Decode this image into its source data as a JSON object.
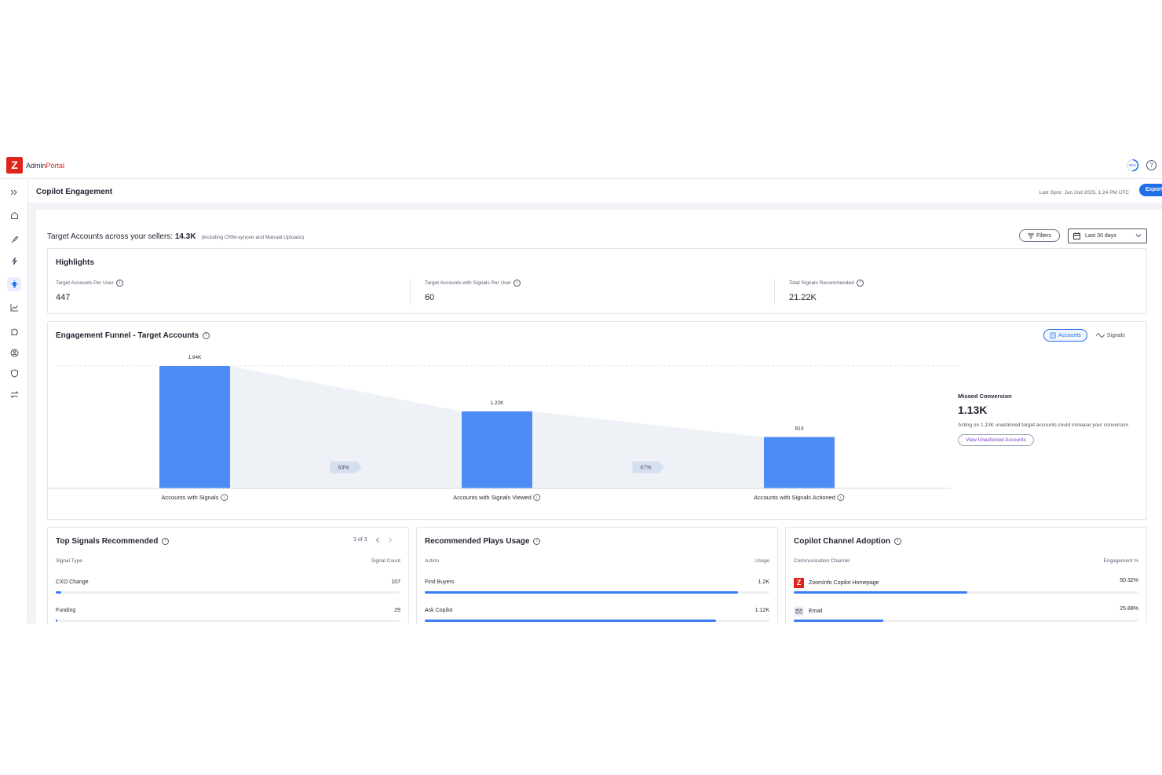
{
  "brand": {
    "logo_letter": "Z",
    "name_part1": "Admin",
    "name_part2": "Portal"
  },
  "topbar": {
    "progress_label": "50%",
    "progress_value": 0.5,
    "help_symbol": "?"
  },
  "sidebar": {
    "icons": [
      "chevrons-right-icon",
      "home-icon",
      "rocket-icon",
      "lightning-icon",
      "lightbulb-icon",
      "line-chart-icon",
      "puzzle-icon",
      "user-circle-icon",
      "shield-icon",
      "transfer-icon"
    ],
    "active_index": 4
  },
  "header": {
    "title": "Copilot Engagement",
    "last_sync": "Last Sync: Jun 2nd 2025, 1:24 PM UTC",
    "export_label": "Export"
  },
  "summary": {
    "prefix": "Target Accounts across your sellers:",
    "value": "14.3K",
    "note": "(including CRM-synced and Manual Uploads)",
    "filters_label": "Filters",
    "date_range": "Last 30 days"
  },
  "highlights": {
    "title": "Highlights",
    "items": [
      {
        "label": "Target Accounts Per User",
        "value": "447"
      },
      {
        "label": "Target Accounts with Signals Per User",
        "value": "60"
      },
      {
        "label": "Total Signals Recommended",
        "value": "21.22K"
      }
    ]
  },
  "funnel": {
    "title": "Engagement Funnel - Target Accounts",
    "toggle_accounts": "Accounts",
    "toggle_signals": "Signals",
    "missed": {
      "title": "Missed Conversion",
      "value": "1.13K",
      "desc": "Acting on 1.13K unactioned target accounts could increase your conversion",
      "button": "View Unactioned Accounts"
    }
  },
  "chart_data": {
    "type": "bar",
    "categories": [
      "Accounts with Signals",
      "Accounts with Signals Viewed",
      "Accounts with Signals Actioned"
    ],
    "values": [
      1940,
      1220,
      814
    ],
    "value_labels": [
      "1.94K",
      "1.22K",
      "814"
    ],
    "conversion_labels": [
      "63%",
      "67%"
    ],
    "ylim": [
      0,
      1940
    ],
    "grid": false,
    "colors": {
      "bar": "#4d8cf5",
      "connector": "#eef1f6",
      "badge": "#d6dff0"
    }
  },
  "top_signals": {
    "title": "Top Signals Recommended",
    "pager": "3 of 3",
    "col_left": "Signal Type",
    "col_right": "Signal Count",
    "rows": [
      {
        "label": "CXO Change",
        "value": "107",
        "fill": 0.016
      },
      {
        "label": "Funding",
        "value": "29",
        "fill": 0.004
      }
    ]
  },
  "plays": {
    "title": "Recommended Plays Usage",
    "col_left": "Action",
    "col_right": "Usage",
    "rows": [
      {
        "label": "Find Buyers",
        "value": "1.2K",
        "fill": 0.91
      },
      {
        "label": "Ask Copilot",
        "value": "1.12K",
        "fill": 0.845
      }
    ]
  },
  "channels": {
    "title": "Copilot Channel Adoption",
    "col_left": "Communication Channel",
    "col_right": "Engagement %",
    "rows": [
      {
        "label": "ZoomInfo Copilot Homepage",
        "value": "50.32%",
        "fill": 0.5032,
        "icon": "zoominfo-logo-icon"
      },
      {
        "label": "Email",
        "value": "25.88%",
        "fill": 0.2588,
        "icon": "email-icon"
      }
    ]
  }
}
